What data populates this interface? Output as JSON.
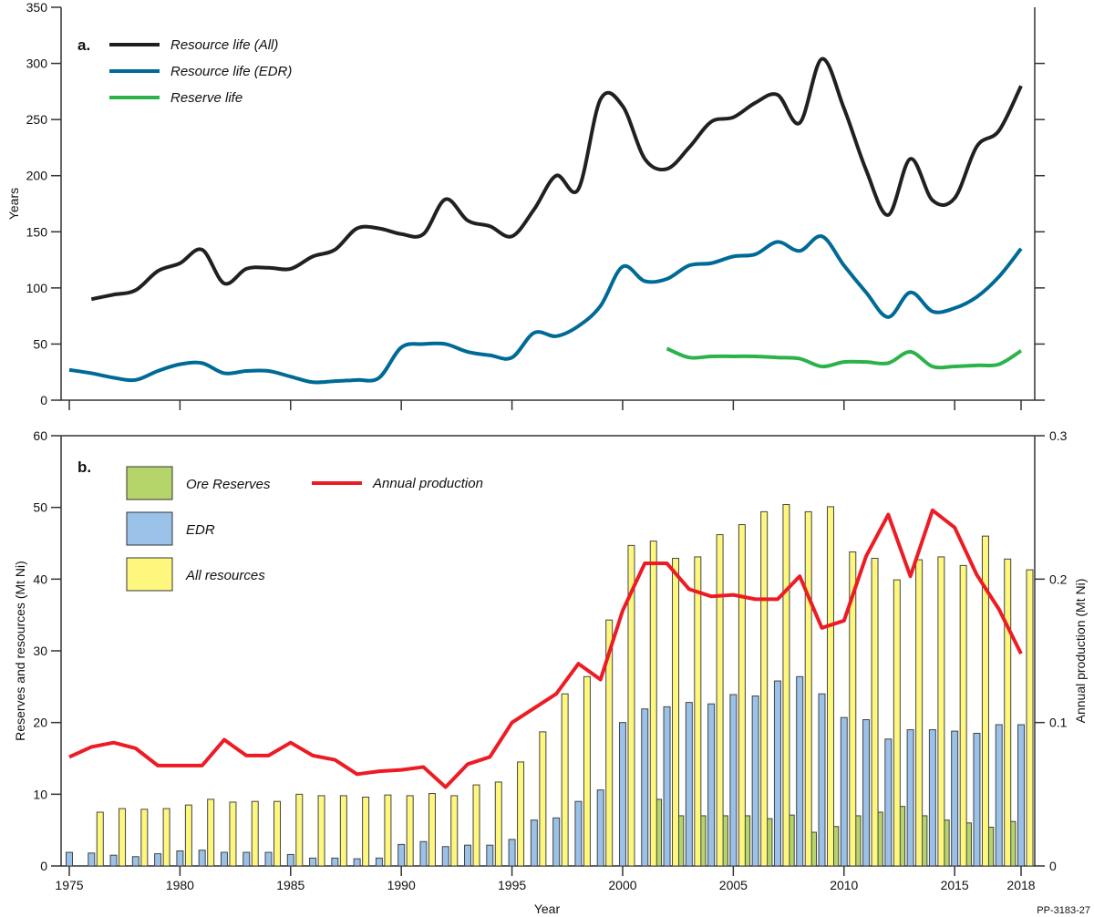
{
  "chart_data": [
    {
      "panel_label": "a.",
      "type": "line",
      "ylabel": "Years",
      "ylim": [
        0,
        350
      ],
      "yticks": [
        0,
        50,
        100,
        150,
        200,
        250,
        300,
        350
      ],
      "xlim": [
        1975,
        2018
      ],
      "xticks": [
        1975,
        1980,
        1985,
        1990,
        1995,
        2000,
        2005,
        2010,
        2015,
        2018
      ],
      "legend_placement": "top-left",
      "series": [
        {
          "name": "Resource life (All)",
          "color": "#231f20",
          "x": [
            1976,
            1977,
            1978,
            1979,
            1980,
            1981,
            1982,
            1983,
            1984,
            1985,
            1986,
            1987,
            1988,
            1989,
            1990,
            1991,
            1992,
            1993,
            1994,
            1995,
            1996,
            1997,
            1998,
            1999,
            2000,
            2001,
            2002,
            2003,
            2004,
            2005,
            2006,
            2007,
            2008,
            2009,
            2010,
            2011,
            2012,
            2013,
            2014,
            2015,
            2016,
            2017,
            2018
          ],
          "values": [
            90,
            94,
            98,
            115,
            122,
            134,
            104,
            117,
            118,
            117,
            128,
            134,
            153,
            153,
            148,
            148,
            179,
            160,
            155,
            146,
            170,
            200,
            188,
            268,
            262,
            215,
            206,
            225,
            248,
            252,
            265,
            272,
            247,
            304,
            260,
            205,
            165,
            215,
            178,
            180,
            226,
            240,
            280
          ]
        },
        {
          "name": "Resource life (EDR)",
          "color": "#006a96",
          "x": [
            1975,
            1976,
            1977,
            1978,
            1979,
            1980,
            1981,
            1982,
            1983,
            1984,
            1985,
            1986,
            1987,
            1988,
            1989,
            1990,
            1991,
            1992,
            1993,
            1994,
            1995,
            1996,
            1997,
            1998,
            1999,
            2000,
            2001,
            2002,
            2003,
            2004,
            2005,
            2006,
            2007,
            2008,
            2009,
            2010,
            2011,
            2012,
            2013,
            2014,
            2015,
            2016,
            2017,
            2018
          ],
          "values": [
            27,
            24,
            20,
            18,
            26,
            32,
            33,
            24,
            26,
            26,
            21,
            16,
            17,
            18,
            20,
            47,
            50,
            50,
            43,
            40,
            38,
            60,
            57,
            66,
            84,
            119,
            106,
            108,
            120,
            122,
            128,
            130,
            141,
            133,
            146,
            120,
            96,
            74,
            96,
            79,
            82,
            92,
            110,
            135
          ]
        },
        {
          "name": "Reserve life",
          "color": "#2bb34a",
          "x": [
            2002,
            2003,
            2004,
            2005,
            2006,
            2007,
            2008,
            2009,
            2010,
            2011,
            2012,
            2013,
            2014,
            2015,
            2016,
            2017,
            2018
          ],
          "values": [
            46,
            38,
            39,
            39,
            39,
            38,
            37,
            30,
            34,
            34,
            33,
            43,
            30,
            30,
            31,
            32,
            44
          ]
        }
      ]
    },
    {
      "panel_label": "b.",
      "type": "bar",
      "xlabel": "Year",
      "ylabel": "Reserves and resources (Mt Ni)",
      "ylabel_right": "Annual production (Mt Ni)",
      "ylim": [
        0,
        60
      ],
      "ylim_right": [
        0,
        0.3
      ],
      "yticks": [
        0,
        10,
        20,
        30,
        40,
        50,
        60
      ],
      "yticks_right": [
        "0",
        "0.1",
        "0.2",
        "0.3"
      ],
      "xticks": [
        "1975",
        "1980",
        "1985",
        "1990",
        "1995",
        "2000",
        "2005",
        "2010",
        "2015",
        "2018"
      ],
      "legend_placement": "top-left",
      "categories": [
        1975,
        1976,
        1977,
        1978,
        1979,
        1980,
        1981,
        1982,
        1983,
        1984,
        1985,
        1986,
        1987,
        1988,
        1989,
        1990,
        1991,
        1992,
        1993,
        1994,
        1995,
        1996,
        1997,
        1998,
        1999,
        2000,
        2001,
        2002,
        2003,
        2004,
        2005,
        2006,
        2007,
        2008,
        2009,
        2010,
        2011,
        2012,
        2013,
        2014,
        2015,
        2016,
        2017,
        2018
      ],
      "series": [
        {
          "name": "Ore Reserves",
          "color": "#b5d56a",
          "values": [
            null,
            null,
            null,
            null,
            null,
            null,
            null,
            null,
            null,
            null,
            null,
            null,
            null,
            null,
            null,
            null,
            null,
            null,
            null,
            null,
            null,
            null,
            null,
            null,
            null,
            null,
            null,
            9.3,
            7.0,
            7.0,
            7.0,
            7.0,
            6.6,
            7.1,
            4.7,
            5.5,
            7.0,
            7.5,
            8.3,
            7.0,
            6.4,
            6.0,
            5.4,
            6.2
          ]
        },
        {
          "name": "EDR",
          "color": "#9ac1e8",
          "values": [
            1.9,
            1.8,
            1.5,
            1.3,
            1.7,
            2.1,
            2.2,
            1.9,
            1.9,
            1.9,
            1.6,
            1.1,
            1.1,
            1.0,
            1.1,
            3.0,
            3.4,
            2.7,
            2.9,
            2.9,
            3.7,
            6.4,
            6.7,
            9.0,
            10.6,
            20.0,
            21.9,
            22.2,
            22.8,
            22.6,
            23.9,
            23.7,
            25.8,
            26.4,
            24.0,
            20.7,
            20.4,
            17.7,
            19.0,
            19.0,
            18.8,
            18.5,
            19.7,
            19.7
          ]
        },
        {
          "name": "All resources",
          "color": "#fef77e",
          "values": [
            null,
            7.5,
            8.0,
            7.9,
            8.0,
            8.5,
            9.3,
            8.9,
            9.0,
            9.0,
            10.0,
            9.8,
            9.8,
            9.6,
            9.9,
            9.8,
            10.1,
            9.8,
            11.3,
            11.7,
            14.5,
            18.7,
            24.0,
            26.4,
            34.3,
            44.7,
            45.3,
            42.9,
            43.1,
            46.2,
            47.6,
            49.4,
            50.4,
            49.4,
            50.1,
            43.8,
            42.9,
            39.9,
            42.7,
            43.1,
            41.9,
            46.0,
            42.8,
            41.3
          ]
        },
        {
          "name": "Annual production",
          "type": "line",
          "axis": "right",
          "color": "#ed1c24",
          "values": [
            0.076,
            0.083,
            0.086,
            0.082,
            0.07,
            0.07,
            0.07,
            0.088,
            0.077,
            0.077,
            0.086,
            0.077,
            0.074,
            0.064,
            0.066,
            0.067,
            0.069,
            0.055,
            0.071,
            0.076,
            0.1,
            0.11,
            0.12,
            0.141,
            0.13,
            0.178,
            0.211,
            0.211,
            0.193,
            0.188,
            0.189,
            0.186,
            0.186,
            0.202,
            0.166,
            0.171,
            0.216,
            0.245,
            0.202,
            0.248,
            0.236,
            0.203,
            0.179,
            0.148
          ]
        }
      ]
    }
  ],
  "figure_id": "PP-3183-27"
}
